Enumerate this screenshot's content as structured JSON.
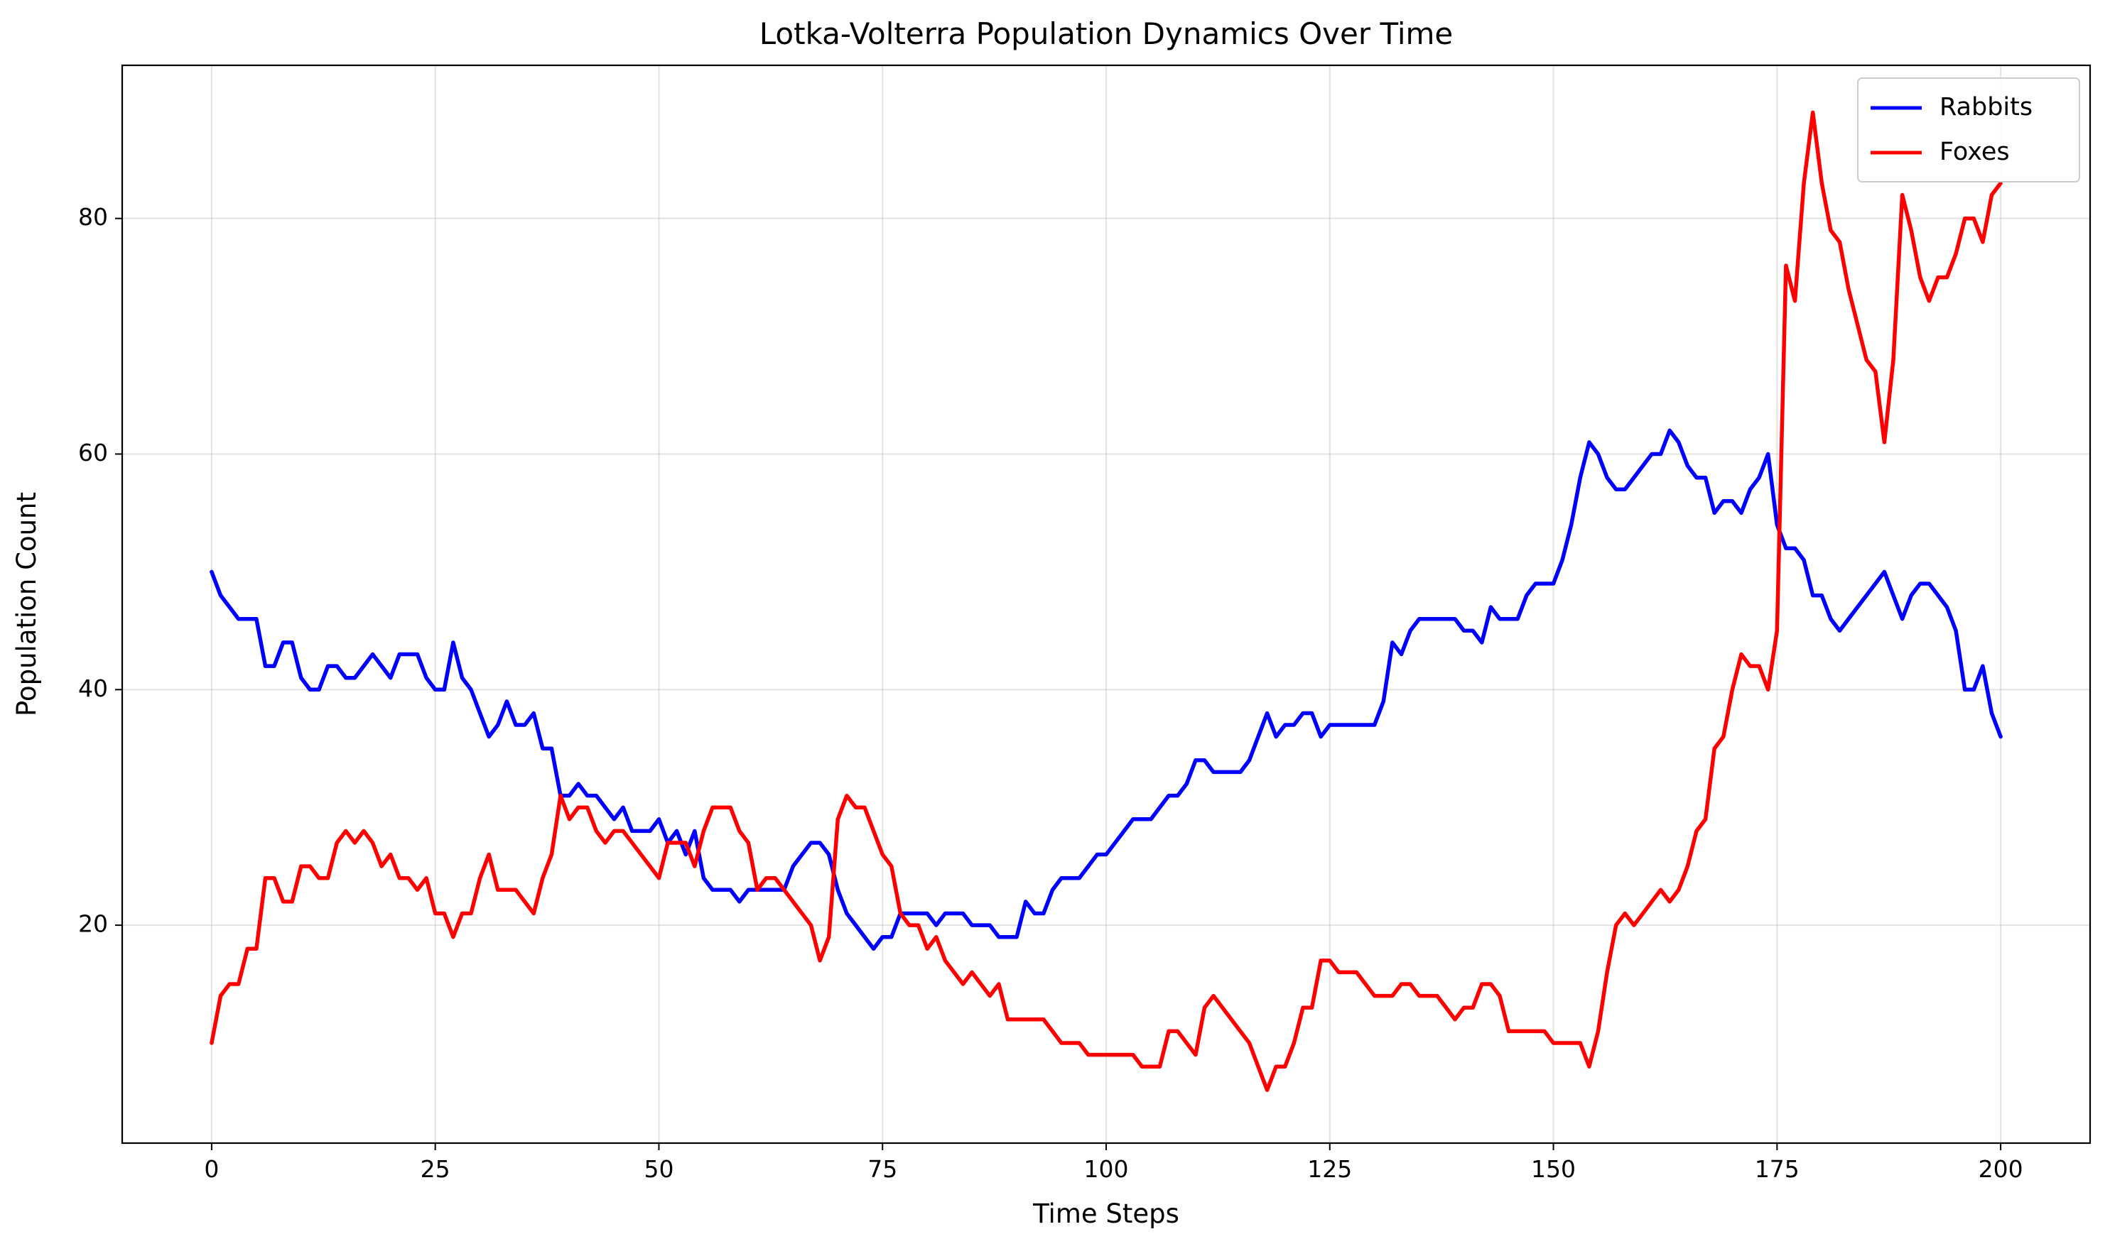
{
  "chart_data": {
    "type": "line",
    "title": "Lotka-Volterra Population Dynamics Over Time",
    "xlabel": "Time Steps",
    "ylabel": "Population Count",
    "xlim": [
      -10,
      210
    ],
    "ylim": [
      1.5,
      93
    ],
    "xticks": [
      0,
      25,
      50,
      75,
      100,
      125,
      150,
      175,
      200
    ],
    "xtick_labels": [
      "0",
      "25",
      "50",
      "75",
      "100",
      "125",
      "150",
      "175",
      "200"
    ],
    "yticks": [
      20,
      40,
      60,
      80
    ],
    "ytick_labels": [
      "20",
      "40",
      "60",
      "80"
    ],
    "grid": true,
    "legend_position": "top-right",
    "x": [
      0,
      1,
      2,
      3,
      4,
      5,
      6,
      7,
      8,
      9,
      10,
      11,
      12,
      13,
      14,
      15,
      16,
      17,
      18,
      19,
      20,
      21,
      22,
      23,
      24,
      25,
      26,
      27,
      28,
      29,
      30,
      31,
      32,
      33,
      34,
      35,
      36,
      37,
      38,
      39,
      40,
      41,
      42,
      43,
      44,
      45,
      46,
      47,
      48,
      49,
      50,
      51,
      52,
      53,
      54,
      55,
      56,
      57,
      58,
      59,
      60,
      61,
      62,
      63,
      64,
      65,
      66,
      67,
      68,
      69,
      70,
      71,
      72,
      73,
      74,
      75,
      76,
      77,
      78,
      79,
      80,
      81,
      82,
      83,
      84,
      85,
      86,
      87,
      88,
      89,
      90,
      91,
      92,
      93,
      94,
      95,
      96,
      97,
      98,
      99,
      100,
      101,
      102,
      103,
      104,
      105,
      106,
      107,
      108,
      109,
      110,
      111,
      112,
      113,
      114,
      115,
      116,
      117,
      118,
      119,
      120,
      121,
      122,
      123,
      124,
      125,
      126,
      127,
      128,
      129,
      130,
      131,
      132,
      133,
      134,
      135,
      136,
      137,
      138,
      139,
      140,
      141,
      142,
      143,
      144,
      145,
      146,
      147,
      148,
      149,
      150,
      151,
      152,
      153,
      154,
      155,
      156,
      157,
      158,
      159,
      160,
      161,
      162,
      163,
      164,
      165,
      166,
      167,
      168,
      169,
      170,
      171,
      172,
      173,
      174,
      175,
      176,
      177,
      178,
      179,
      180,
      181,
      182,
      183,
      184,
      185,
      186,
      187,
      188,
      189,
      190,
      191,
      192,
      193,
      194,
      195,
      196,
      197,
      198,
      199,
      200
    ],
    "series": [
      {
        "name": "Rabbits",
        "color": "#0000ff",
        "values": [
          50,
          48,
          47,
          46,
          46,
          46,
          42,
          42,
          44,
          44,
          41,
          40,
          40,
          42,
          42,
          41,
          41,
          42,
          43,
          42,
          41,
          43,
          43,
          43,
          41,
          40,
          40,
          44,
          41,
          40,
          38,
          36,
          37,
          39,
          37,
          37,
          38,
          35,
          35,
          31,
          31,
          32,
          31,
          31,
          30,
          29,
          30,
          28,
          28,
          28,
          29,
          27,
          28,
          26,
          28,
          24,
          23,
          23,
          23,
          22,
          23,
          23,
          23,
          23,
          23,
          25,
          26,
          27,
          27,
          26,
          23,
          21,
          20,
          19,
          18,
          19,
          19,
          21,
          21,
          21,
          21,
          20,
          21,
          21,
          21,
          20,
          20,
          20,
          19,
          19,
          19,
          22,
          21,
          21,
          23,
          24,
          24,
          24,
          25,
          26,
          26,
          27,
          28,
          29,
          29,
          29,
          30,
          31,
          31,
          32,
          34,
          34,
          33,
          33,
          33,
          33,
          34,
          36,
          38,
          36,
          37,
          37,
          38,
          38,
          36,
          37,
          37,
          37,
          37,
          37,
          37,
          39,
          44,
          43,
          45,
          46,
          46,
          46,
          46,
          46,
          45,
          45,
          44,
          47,
          46,
          46,
          46,
          48,
          49,
          49,
          49,
          51,
          54,
          58,
          61,
          60,
          58,
          57,
          57,
          58,
          59,
          60,
          60,
          62,
          61,
          59,
          58,
          58,
          55,
          56,
          56,
          55,
          57,
          58,
          60,
          54,
          52,
          52,
          51,
          48,
          48,
          46,
          45,
          46,
          47,
          48,
          49,
          50,
          48,
          46,
          48,
          49,
          49,
          48,
          47,
          45,
          40,
          40,
          42,
          38,
          36
        ]
      },
      {
        "name": "Foxes",
        "color": "#ff0000",
        "values": [
          10,
          14,
          15,
          15,
          18,
          18,
          24,
          24,
          22,
          22,
          25,
          25,
          24,
          24,
          27,
          28,
          27,
          28,
          27,
          25,
          26,
          24,
          24,
          23,
          24,
          21,
          21,
          19,
          21,
          21,
          24,
          26,
          23,
          23,
          23,
          22,
          21,
          24,
          26,
          31,
          29,
          30,
          30,
          28,
          27,
          28,
          28,
          27,
          26,
          25,
          24,
          27,
          27,
          27,
          25,
          28,
          30,
          30,
          30,
          28,
          27,
          23,
          24,
          24,
          23,
          22,
          21,
          20,
          17,
          19,
          29,
          31,
          30,
          30,
          28,
          26,
          25,
          21,
          20,
          20,
          18,
          19,
          17,
          16,
          15,
          16,
          15,
          14,
          15,
          12,
          12,
          12,
          12,
          12,
          11,
          10,
          10,
          10,
          9,
          9,
          9,
          9,
          9,
          9,
          8,
          8,
          8,
          11,
          11,
          10,
          9,
          13,
          14,
          13,
          12,
          11,
          10,
          8,
          6,
          8,
          8,
          10,
          13,
          13,
          17,
          17,
          16,
          16,
          16,
          15,
          14,
          14,
          14,
          15,
          15,
          14,
          14,
          14,
          13,
          12,
          13,
          13,
          15,
          15,
          14,
          11,
          11,
          11,
          11,
          11,
          10,
          10,
          10,
          10,
          8,
          11,
          16,
          20,
          21,
          20,
          21,
          22,
          23,
          22,
          23,
          25,
          28,
          29,
          35,
          36,
          40,
          43,
          42,
          42,
          40,
          45,
          76,
          73,
          83,
          89,
          83,
          79,
          78,
          74,
          71,
          68,
          67,
          61,
          68,
          82,
          79,
          75,
          73,
          75,
          75,
          77,
          80,
          80,
          78,
          82,
          83
        ]
      }
    ]
  }
}
